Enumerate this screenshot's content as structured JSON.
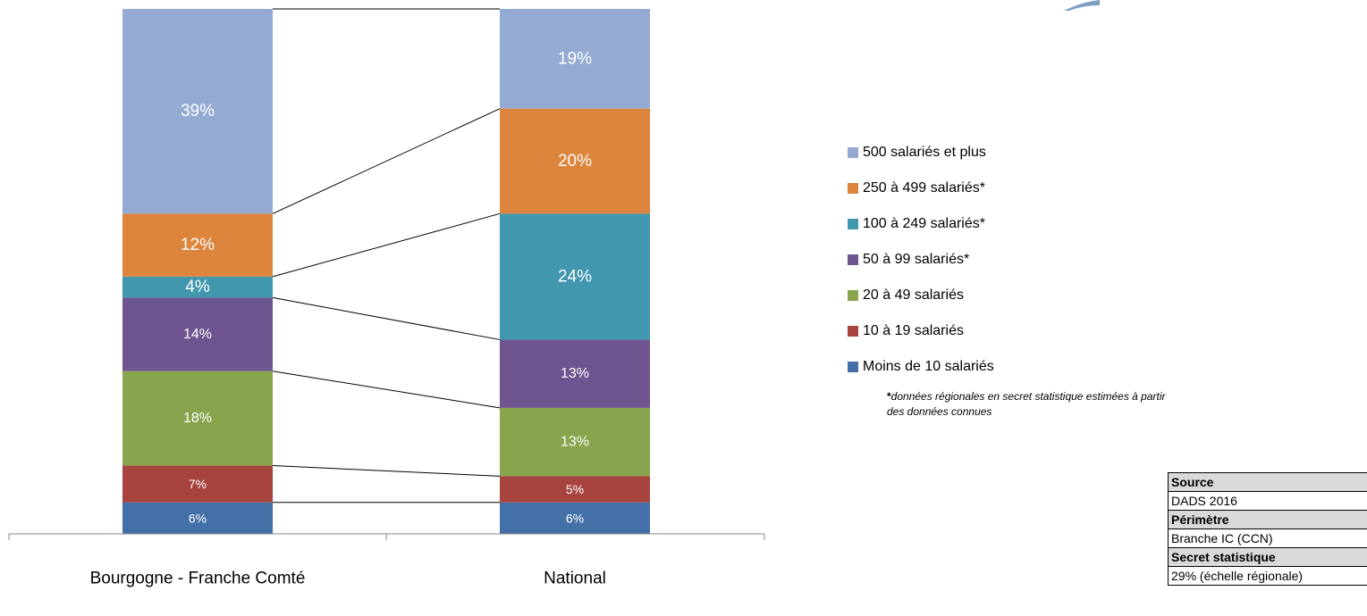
{
  "chart_data": {
    "type": "bar",
    "stacked": true,
    "normalized": true,
    "categories": [
      "Bourgogne - Franche Comté",
      "National"
    ],
    "series": [
      {
        "name": "Moins de 10 salariés",
        "values": [
          6,
          6
        ],
        "labels": [
          "6%",
          "6%"
        ],
        "color": "#4470a8"
      },
      {
        "name": "10 à 19 salariés",
        "values": [
          7,
          5
        ],
        "labels": [
          "7%",
          "5%"
        ],
        "color": "#a8443f"
      },
      {
        "name": "20 à 49 salariés",
        "values": [
          18,
          13
        ],
        "labels": [
          "18%",
          "13%"
        ],
        "color": "#88a44c"
      },
      {
        "name": "50 à 99 salariés*",
        "values": [
          14,
          13
        ],
        "labels": [
          "14%",
          "13%"
        ],
        "color": "#6e5590"
      },
      {
        "name": "100 à 249 salariés*",
        "values": [
          4,
          24
        ],
        "labels": [
          "4%",
          "24%"
        ],
        "color": "#4097ae"
      },
      {
        "name": "250 à 499 salariés*",
        "values": [
          12,
          20
        ],
        "labels": [
          "12%",
          "20%"
        ],
        "color": "#dd843d"
      },
      {
        "name": "500 salariés et plus",
        "values": [
          39,
          19
        ],
        "labels": [
          "39%",
          "19%"
        ],
        "color": "#95aad3"
      }
    ],
    "ylim": [
      0,
      100
    ],
    "legend_position": "right",
    "series_lines": true,
    "grid": false
  },
  "legend_order": [
    "500 salariés et plus",
    "250 à 499 salariés*",
    "100 à 249 salariés*",
    "50 à 99 salariés*",
    "20 à 49 salariés",
    "10 à 19 salariés",
    "Moins de 10 salariés"
  ],
  "footnote": {
    "star": "*",
    "line1": "données régionales en secret statistique estimées à partir",
    "line2": "des données connues"
  },
  "meta_table": {
    "source_label": "Source",
    "source_value": "DADS 2016",
    "perimetre_label": "Périmètre",
    "perimetre_value": "Branche IC (CCN)",
    "secret_label": "Secret statistique",
    "secret_value": "29% (échelle régionale)"
  },
  "colors": {
    "corner_accent": "#7f9fc4"
  }
}
